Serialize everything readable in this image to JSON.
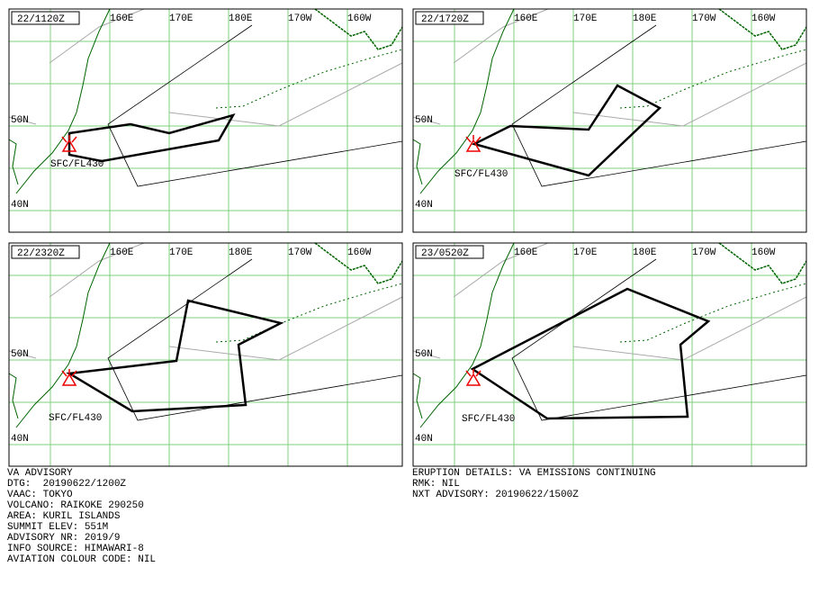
{
  "panels": [
    {
      "time": "22/1120Z",
      "level": "SFC/FL430"
    },
    {
      "time": "22/1720Z",
      "level": "SFC/FL430"
    },
    {
      "time": "22/2320Z",
      "level": "SFC/FL430"
    },
    {
      "time": "23/0520Z",
      "level": "SFC/FL430"
    }
  ],
  "lon_labels": [
    "160E",
    "170E",
    "180E",
    "170W",
    "160W"
  ],
  "lat_labels": [
    "50N",
    "40N"
  ],
  "advisory_left": [
    "VA ADVISORY",
    "DTG:  20190622/1200Z",
    "VAAC: TOKYO",
    "VOLCANO: RAIKOKE 290250",
    "AREA: KURIL ISLANDS",
    "SUMMIT ELEV: 551M",
    "ADVISORY NR: 2019/9",
    "INFO SOURCE: HIMAWARI-8",
    "AVIATION COLOUR CODE: NIL"
  ],
  "advisory_right": [
    "ERUPTION DETAILS: VA EMISSIONS CONTINUING",
    "RMK: NIL",
    "NXT ADVISORY: 20190622/1500Z"
  ]
}
